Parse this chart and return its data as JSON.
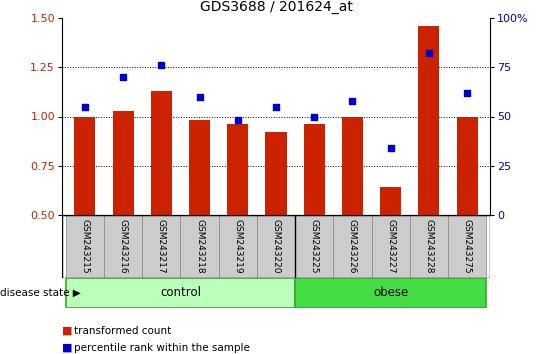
{
  "title": "GDS3688 / 201624_at",
  "samples": [
    "GSM243215",
    "GSM243216",
    "GSM243217",
    "GSM243218",
    "GSM243219",
    "GSM243220",
    "GSM243225",
    "GSM243226",
    "GSM243227",
    "GSM243228",
    "GSM243275"
  ],
  "red_bars": [
    1.0,
    1.03,
    1.13,
    0.98,
    0.96,
    0.92,
    0.96,
    1.0,
    0.64,
    1.46,
    1.0
  ],
  "blue_dots": [
    55,
    70,
    76,
    60,
    48,
    55,
    50,
    58,
    34,
    82,
    62
  ],
  "control_count": 6,
  "obese_count": 5,
  "left_ylim": [
    0.5,
    1.5
  ],
  "right_ylim": [
    0,
    100
  ],
  "left_yticks": [
    0.5,
    0.75,
    1.0,
    1.25,
    1.5
  ],
  "right_yticks": [
    0,
    25,
    50,
    75,
    100
  ],
  "right_yticklabels": [
    "0",
    "25",
    "50",
    "75",
    "100%"
  ],
  "hlines": [
    0.75,
    1.0,
    1.25
  ],
  "bar_color": "#cc2200",
  "dot_color": "#0000cc",
  "control_color": "#bbffbb",
  "obese_color": "#44dd44",
  "bar_width": 0.55,
  "title_fontsize": 10,
  "tick_fontsize": 8,
  "sample_fontsize": 6.5
}
